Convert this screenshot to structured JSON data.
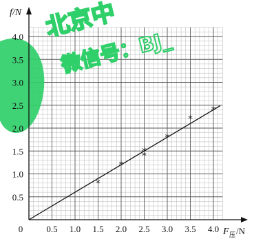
{
  "watermark": {
    "line1": "北京中",
    "line2": "微信号：BJ_",
    "color": "#2fcf6a"
  },
  "chart_data": {
    "type": "scatter",
    "x": [
      1.5,
      2.0,
      2.5,
      2.5,
      3.0,
      3.5,
      4.0
    ],
    "y": [
      0.8,
      1.2,
      1.4,
      1.5,
      1.8,
      2.2,
      2.4
    ],
    "fit_line": {
      "x": [
        0,
        4.15
      ],
      "y": [
        0,
        2.49
      ]
    },
    "xlabel": "F压/N",
    "xlabel_main": "F",
    "xlabel_sub": "压",
    "xlabel_unit": "/N",
    "ylabel": "f/N",
    "xlim": [
      0,
      4.2
    ],
    "ylim": [
      0,
      4.3
    ],
    "xticks": [
      "0.5",
      "1.0",
      "1.5",
      "2.0",
      "2.5",
      "3.0",
      "3.5",
      "4.0"
    ],
    "yticks": [
      "0.5",
      "1.0",
      "1.5",
      "2.0",
      "2.5",
      "3.0",
      "3.5",
      "4.0"
    ],
    "origin_label": "0",
    "marker": "*",
    "grid": true,
    "grid_minor_step": 0.1,
    "grid_major_step": 0.5
  }
}
